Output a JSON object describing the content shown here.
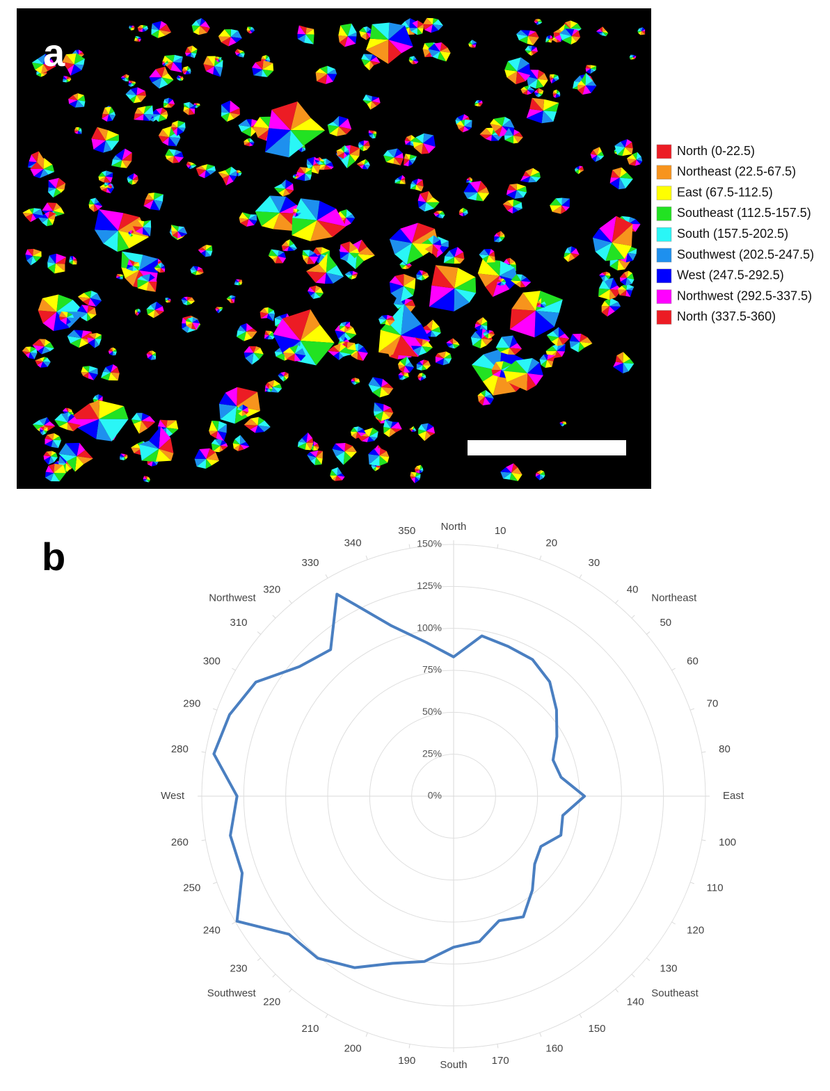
{
  "panels": {
    "a": {
      "label": "a",
      "legend": [
        {
          "label": "North (0-22.5)",
          "color": "#ec1c24"
        },
        {
          "label": "Northeast (22.5-67.5)",
          "color": "#f7941d"
        },
        {
          "label": "East (67.5-112.5)",
          "color": "#ffff00"
        },
        {
          "label": "Southeast (112.5-157.5)",
          "color": "#22e222"
        },
        {
          "label": "South (157.5-202.5)",
          "color": "#2af6f6"
        },
        {
          "label": "Southwest (202.5-247.5)",
          "color": "#1e90ee"
        },
        {
          "label": "West (247.5-292.5)",
          "color": "#0000ff"
        },
        {
          "label": "Northwest (292.5-337.5)",
          "color": "#ff00ff"
        },
        {
          "label": "North (337.5-360)",
          "color": "#ec1c24"
        }
      ]
    },
    "b": {
      "label": "b"
    }
  },
  "chart_data": {
    "type": "radar",
    "x": [
      0,
      10,
      20,
      30,
      40,
      50,
      60,
      70,
      80,
      90,
      100,
      110,
      120,
      130,
      140,
      150,
      160,
      170,
      180,
      190,
      200,
      210,
      220,
      230,
      240,
      250,
      260,
      270,
      280,
      290,
      300,
      310,
      320,
      330,
      340,
      350
    ],
    "values": [
      83,
      97,
      95,
      94,
      89,
      80,
      71,
      63,
      65,
      78,
      66,
      68,
      60,
      63,
      73,
      83,
      79,
      88,
      90,
      100,
      106,
      118,
      126,
      128,
      149,
      134,
      135,
      129,
      145,
      142,
      136,
      120,
      114,
      139,
      108,
      93
    ],
    "color": "#4a7fc1",
    "xlim": [
      0,
      360
    ],
    "xticks": [
      {
        "value": 0,
        "label": "North"
      },
      10,
      20,
      30,
      40,
      {
        "value": 45,
        "label": "Northeast"
      },
      50,
      60,
      70,
      80,
      {
        "value": 90,
        "label": "East"
      },
      100,
      110,
      120,
      130,
      {
        "value": 135,
        "label": "Southeast"
      },
      140,
      150,
      160,
      170,
      {
        "value": 180,
        "label": "South"
      },
      190,
      200,
      210,
      220,
      {
        "value": 225,
        "label": "Southwest"
      },
      230,
      240,
      250,
      260,
      {
        "value": 270,
        "label": "West"
      },
      280,
      290,
      300,
      310,
      {
        "value": 315,
        "label": "Northwest"
      },
      320,
      330,
      340,
      350
    ],
    "ylim": [
      0,
      150
    ],
    "yticks": [
      {
        "value": 0,
        "label": "0%"
      },
      {
        "value": 25,
        "label": "25%"
      },
      {
        "value": 50,
        "label": "50%"
      },
      {
        "value": 75,
        "label": "75%"
      },
      {
        "value": 100,
        "label": "100%"
      },
      {
        "value": 125,
        "label": "125%"
      },
      {
        "value": 150,
        "label": "150%"
      }
    ],
    "grid": true
  }
}
